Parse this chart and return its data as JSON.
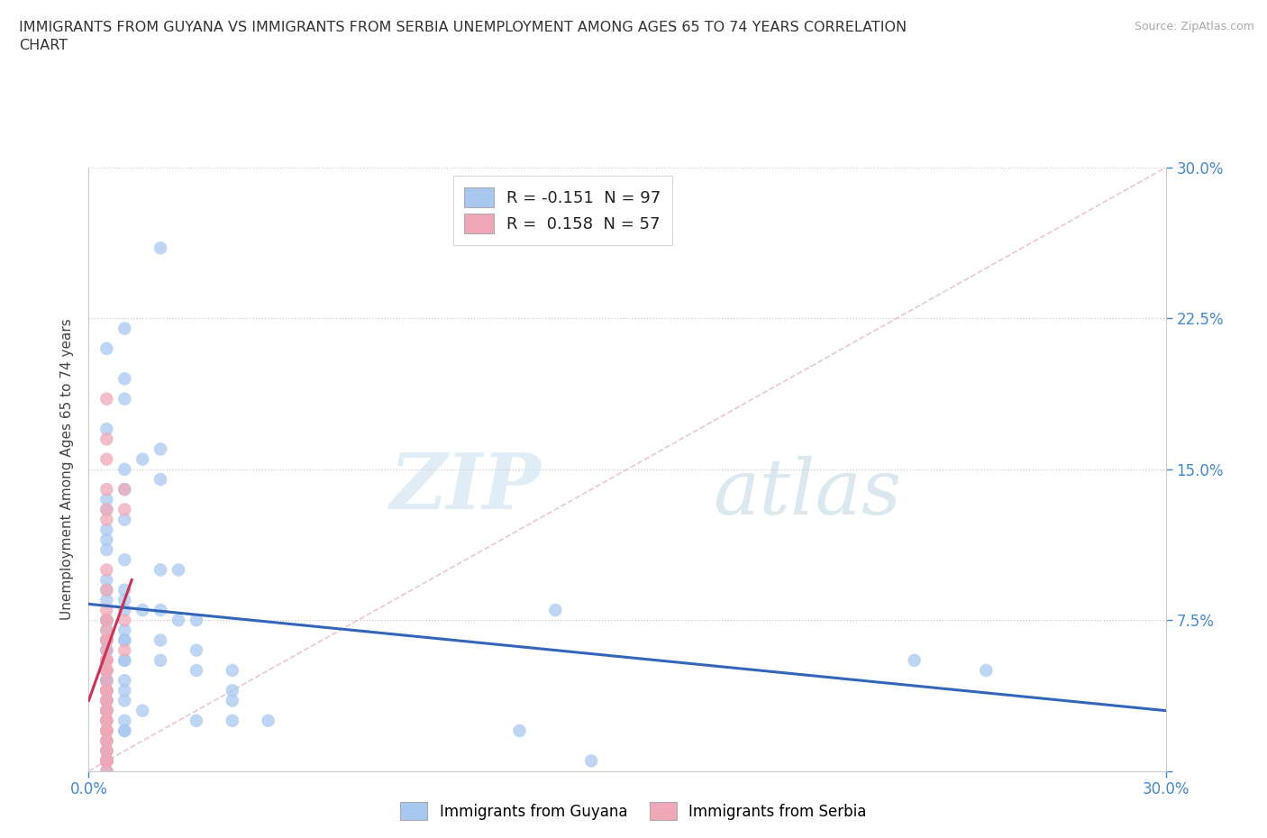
{
  "title": "IMMIGRANTS FROM GUYANA VS IMMIGRANTS FROM SERBIA UNEMPLOYMENT AMONG AGES 65 TO 74 YEARS CORRELATION\nCHART",
  "source": "Source: ZipAtlas.com",
  "ylabel": "Unemployment Among Ages 65 to 74 years",
  "xlabel_guyana": "Immigrants from Guyana",
  "xlabel_serbia": "Immigrants from Serbia",
  "xmin": 0.0,
  "xmax": 0.3,
  "ymin": 0.0,
  "ymax": 0.3,
  "yticks": [
    0.0,
    0.075,
    0.15,
    0.225,
    0.3
  ],
  "ytick_labels_right": [
    "",
    "7.5%",
    "15.0%",
    "22.5%",
    "30.0%"
  ],
  "xticks": [
    0.0,
    0.3
  ],
  "xtick_labels": [
    "0.0%",
    "30.0%"
  ],
  "guyana_color": "#a8c8f0",
  "serbia_color": "#f0a8b8",
  "trend_guyana_color": "#3366bb",
  "trend_serbia_color": "#cc3355",
  "diagonal_color": "#e8c0c8",
  "r_guyana": -0.151,
  "n_guyana": 97,
  "r_serbia": 0.158,
  "n_serbia": 57,
  "watermark_zip": "ZIP",
  "watermark_atlas": "atlas",
  "background_color": "#ffffff",
  "guyana_x": [
    0.02,
    0.01,
    0.005,
    0.01,
    0.01,
    0.005,
    0.02,
    0.015,
    0.01,
    0.02,
    0.01,
    0.005,
    0.005,
    0.01,
    0.005,
    0.005,
    0.005,
    0.01,
    0.02,
    0.025,
    0.005,
    0.005,
    0.01,
    0.005,
    0.01,
    0.01,
    0.02,
    0.015,
    0.005,
    0.025,
    0.005,
    0.03,
    0.005,
    0.01,
    0.005,
    0.01,
    0.005,
    0.02,
    0.01,
    0.005,
    0.005,
    0.005,
    0.03,
    0.005,
    0.01,
    0.005,
    0.005,
    0.02,
    0.01,
    0.005,
    0.03,
    0.005,
    0.04,
    0.005,
    0.005,
    0.005,
    0.01,
    0.005,
    0.005,
    0.005,
    0.01,
    0.04,
    0.005,
    0.005,
    0.005,
    0.04,
    0.005,
    0.01,
    0.005,
    0.005,
    0.005,
    0.015,
    0.005,
    0.005,
    0.01,
    0.005,
    0.05,
    0.04,
    0.03,
    0.01,
    0.01,
    0.005,
    0.005,
    0.12,
    0.13,
    0.005,
    0.005,
    0.005,
    0.005,
    0.005,
    0.005,
    0.005,
    0.14,
    0.23,
    0.25,
    0.005,
    0.005
  ],
  "guyana_y": [
    0.26,
    0.22,
    0.21,
    0.195,
    0.185,
    0.17,
    0.16,
    0.155,
    0.15,
    0.145,
    0.14,
    0.135,
    0.13,
    0.125,
    0.12,
    0.115,
    0.11,
    0.105,
    0.1,
    0.1,
    0.095,
    0.09,
    0.09,
    0.085,
    0.085,
    0.08,
    0.08,
    0.08,
    0.075,
    0.075,
    0.075,
    0.075,
    0.075,
    0.07,
    0.07,
    0.065,
    0.065,
    0.065,
    0.065,
    0.065,
    0.065,
    0.06,
    0.06,
    0.06,
    0.055,
    0.055,
    0.055,
    0.055,
    0.055,
    0.05,
    0.05,
    0.05,
    0.05,
    0.05,
    0.045,
    0.045,
    0.045,
    0.045,
    0.045,
    0.04,
    0.04,
    0.04,
    0.04,
    0.035,
    0.035,
    0.035,
    0.035,
    0.035,
    0.035,
    0.03,
    0.03,
    0.03,
    0.03,
    0.03,
    0.025,
    0.025,
    0.025,
    0.025,
    0.025,
    0.02,
    0.02,
    0.02,
    0.02,
    0.02,
    0.08,
    0.015,
    0.015,
    0.01,
    0.01,
    0.005,
    0.005,
    0.005,
    0.005,
    0.055,
    0.05,
    0.005,
    0.0
  ],
  "serbia_x": [
    0.005,
    0.005,
    0.005,
    0.005,
    0.005,
    0.005,
    0.005,
    0.005,
    0.005,
    0.005,
    0.005,
    0.005,
    0.005,
    0.005,
    0.005,
    0.005,
    0.005,
    0.005,
    0.005,
    0.005,
    0.005,
    0.005,
    0.005,
    0.005,
    0.005,
    0.005,
    0.005,
    0.005,
    0.005,
    0.005,
    0.01,
    0.01,
    0.01,
    0.01,
    0.005,
    0.005,
    0.005,
    0.005,
    0.005,
    0.005,
    0.005,
    0.005,
    0.005,
    0.005,
    0.005,
    0.005,
    0.005,
    0.005,
    0.005,
    0.005,
    0.005,
    0.005,
    0.005,
    0.005,
    0.005,
    0.005,
    0.005
  ],
  "serbia_y": [
    0.185,
    0.165,
    0.155,
    0.14,
    0.13,
    0.125,
    0.1,
    0.09,
    0.08,
    0.075,
    0.075,
    0.07,
    0.065,
    0.065,
    0.06,
    0.055,
    0.05,
    0.05,
    0.05,
    0.045,
    0.04,
    0.04,
    0.035,
    0.03,
    0.025,
    0.025,
    0.02,
    0.02,
    0.015,
    0.01,
    0.14,
    0.13,
    0.075,
    0.06,
    0.055,
    0.04,
    0.035,
    0.03,
    0.025,
    0.02,
    0.015,
    0.01,
    0.005,
    0.0,
    0.005,
    0.005,
    0.005,
    0.005,
    0.005,
    0.005,
    0.005,
    0.005,
    0.005,
    0.005,
    0.005,
    0.005,
    0.005
  ],
  "trend_guyana_x0": 0.0,
  "trend_guyana_x1": 0.3,
  "trend_guyana_y0": 0.083,
  "trend_guyana_y1": 0.03,
  "trend_serbia_x0": 0.0,
  "trend_serbia_x1": 0.012,
  "trend_serbia_y0": 0.035,
  "trend_serbia_y1": 0.095
}
